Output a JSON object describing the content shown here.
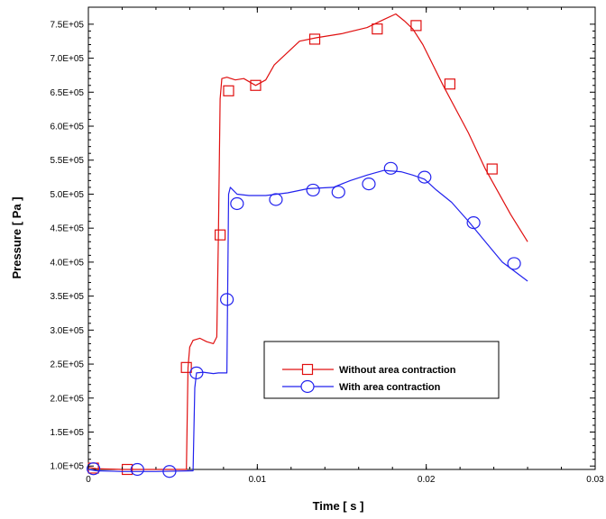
{
  "chart_data": {
    "type": "line",
    "title": "",
    "xlabel": "Time [ s ]",
    "ylabel": "Pressure  [ Pa ]",
    "xlim": [
      0,
      0.03
    ],
    "ylim": [
      95000,
      775000
    ],
    "x_ticks": [
      {
        "value": 0,
        "label": "0"
      },
      {
        "value": 0.01,
        "label": "0.01"
      },
      {
        "value": 0.02,
        "label": "0.02"
      },
      {
        "value": 0.03,
        "label": "0.03"
      }
    ],
    "y_ticks": [
      {
        "value": 100000,
        "label": "1.0E+05"
      },
      {
        "value": 150000,
        "label": "1.5E+05"
      },
      {
        "value": 200000,
        "label": "2.0E+05"
      },
      {
        "value": 250000,
        "label": "2.5E+05"
      },
      {
        "value": 300000,
        "label": "3.0E+05"
      },
      {
        "value": 350000,
        "label": "3.5E+05"
      },
      {
        "value": 400000,
        "label": "4.0E+05"
      },
      {
        "value": 450000,
        "label": "4.5E+05"
      },
      {
        "value": 500000,
        "label": "5.0E+05"
      },
      {
        "value": 550000,
        "label": "5.5E+05"
      },
      {
        "value": 600000,
        "label": "6.0E+05"
      },
      {
        "value": 650000,
        "label": "6.5E+05"
      },
      {
        "value": 700000,
        "label": "7.0E+05"
      },
      {
        "value": 750000,
        "label": "7.5E+05"
      }
    ],
    "grid": false,
    "legend_position": "lower-right (inside plot)",
    "series": [
      {
        "name": "Without area contraction",
        "color": "#e01010",
        "marker": "square",
        "x": [
          0,
          0.0005,
          0.002,
          0.004,
          0.0058,
          0.0059,
          0.006,
          0.0062,
          0.0066,
          0.007,
          0.0074,
          0.0076,
          0.0077,
          0.0078,
          0.0079,
          0.0082,
          0.0087,
          0.0092,
          0.0099,
          0.0105,
          0.011,
          0.0125,
          0.0135,
          0.015,
          0.0165,
          0.0175,
          0.0182,
          0.0187,
          0.0192,
          0.0198,
          0.021,
          0.0225,
          0.0235,
          0.025,
          0.026
        ],
        "y": [
          98000,
          96000,
          95000,
          95000,
          95000,
          245000,
          275000,
          285000,
          288000,
          283000,
          280000,
          290000,
          440000,
          640000,
          670000,
          672000,
          668000,
          670000,
          660000,
          668000,
          690000,
          725000,
          730000,
          736000,
          745000,
          757000,
          765000,
          755000,
          743000,
          720000,
          660000,
          590000,
          537000,
          470000,
          430000
        ],
        "markers_x": [
          0.0003,
          0.0023,
          0.0058,
          0.0078,
          0.0083,
          0.0099,
          0.0134,
          0.0171,
          0.0194,
          0.0214,
          0.0239
        ],
        "markers_y": [
          97000,
          95000,
          245000,
          440000,
          652000,
          660000,
          728000,
          743000,
          748000,
          662000,
          537000
        ]
      },
      {
        "name": "With area contraction",
        "color": "#2222ee",
        "marker": "circle",
        "x": [
          0,
          0.0005,
          0.002,
          0.004,
          0.0062,
          0.0063,
          0.0064,
          0.0068,
          0.0074,
          0.0077,
          0.0082,
          0.0083,
          0.0084,
          0.0088,
          0.0095,
          0.0105,
          0.0118,
          0.013,
          0.0145,
          0.0155,
          0.0165,
          0.0175,
          0.0185,
          0.0192,
          0.0199,
          0.0206,
          0.0215,
          0.0225,
          0.0235,
          0.0245,
          0.026
        ],
        "y": [
          95000,
          93000,
          92000,
          92000,
          93000,
          215000,
          237000,
          238000,
          236000,
          237000,
          237000,
          500000,
          510000,
          500000,
          498000,
          498000,
          502000,
          508000,
          510000,
          520000,
          528000,
          535000,
          533000,
          528000,
          522000,
          506000,
          488000,
          460000,
          430000,
          400000,
          372000
        ],
        "markers_x": [
          0.0003,
          0.0029,
          0.0048,
          0.0064,
          0.0082,
          0.0088,
          0.0111,
          0.0133,
          0.0148,
          0.0166,
          0.0179,
          0.0199,
          0.0228,
          0.0252
        ],
        "markers_y": [
          96000,
          95000,
          92000,
          237000,
          345000,
          486000,
          492000,
          506000,
          503000,
          515000,
          538000,
          525000,
          458000,
          398000
        ]
      }
    ]
  }
}
